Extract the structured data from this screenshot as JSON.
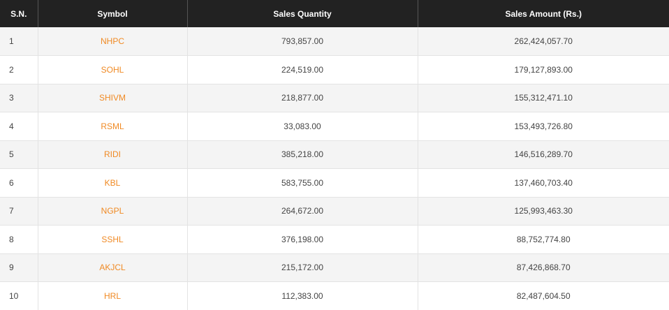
{
  "table": {
    "headers": [
      "S.N.",
      "Symbol",
      "Sales Quantity",
      "Sales Amount (Rs.)"
    ],
    "rows": [
      {
        "sn": "1",
        "symbol": "NHPC",
        "qty": "793,857.00",
        "amount": "262,424,057.70"
      },
      {
        "sn": "2",
        "symbol": "SOHL",
        "qty": "224,519.00",
        "amount": "179,127,893.00"
      },
      {
        "sn": "3",
        "symbol": "SHIVM",
        "qty": "218,877.00",
        "amount": "155,312,471.10"
      },
      {
        "sn": "4",
        "symbol": "RSML",
        "qty": "33,083.00",
        "amount": "153,493,726.80"
      },
      {
        "sn": "5",
        "symbol": "RIDI",
        "qty": "385,218.00",
        "amount": "146,516,289.70"
      },
      {
        "sn": "6",
        "symbol": "KBL",
        "qty": "583,755.00",
        "amount": "137,460,703.40"
      },
      {
        "sn": "7",
        "symbol": "NGPL",
        "qty": "264,672.00",
        "amount": "125,993,463.30"
      },
      {
        "sn": "8",
        "symbol": "SSHL",
        "qty": "376,198.00",
        "amount": "88,752,774.80"
      },
      {
        "sn": "9",
        "symbol": "AKJCL",
        "qty": "215,172.00",
        "amount": "87,426,868.70"
      },
      {
        "sn": "10",
        "symbol": "HRL",
        "qty": "112,383.00",
        "amount": "82,487,604.50"
      }
    ]
  },
  "colors": {
    "header_bg": "#222222",
    "symbol_link": "#f08a24"
  }
}
